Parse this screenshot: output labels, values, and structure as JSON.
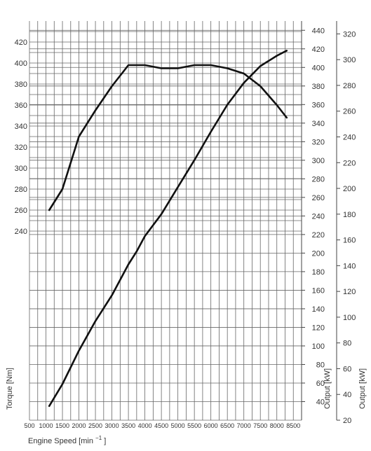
{
  "chart_data": {
    "type": "line",
    "grid": true,
    "x_axis": {
      "label_main": "Engine Speed [min",
      "label_sup": "−1",
      "label_close": "]",
      "range": [
        500,
        8750
      ],
      "ticks": [
        500,
        1000,
        1500,
        2000,
        2500,
        3000,
        3500,
        4000,
        4500,
        5000,
        5500,
        6000,
        6500,
        7000,
        7500,
        8000,
        8500
      ]
    },
    "left_axis": {
      "label": "Torque [Nm]",
      "range": [
        60,
        440
      ],
      "ticks": [
        240,
        260,
        280,
        300,
        320,
        340,
        360,
        380,
        400,
        420
      ]
    },
    "right_axis_hp": {
      "label": "Output [kW]",
      "range": [
        20,
        450
      ],
      "ticks": [
        40,
        60,
        80,
        100,
        120,
        140,
        160,
        180,
        200,
        220,
        240,
        260,
        280,
        300,
        320,
        340,
        360,
        380,
        400,
        420,
        440
      ]
    },
    "right_axis_kw": {
      "label": "Output [kW]",
      "range": [
        20,
        330
      ],
      "ticks": [
        20,
        40,
        60,
        80,
        100,
        120,
        140,
        160,
        180,
        200,
        220,
        240,
        260,
        280,
        300,
        320
      ]
    },
    "series": [
      {
        "axis": "left",
        "points": [
          [
            1100,
            260
          ],
          [
            1500,
            280
          ],
          [
            2000,
            330
          ],
          [
            2500,
            355
          ],
          [
            3000,
            378
          ],
          [
            3500,
            398
          ],
          [
            4000,
            398
          ],
          [
            4500,
            395
          ],
          [
            5000,
            395
          ],
          [
            5500,
            398
          ],
          [
            6000,
            398
          ],
          [
            6500,
            395
          ],
          [
            7000,
            390
          ],
          [
            7500,
            378
          ],
          [
            8000,
            360
          ],
          [
            8300,
            348
          ]
        ]
      },
      {
        "axis": "right_kw",
        "points": [
          [
            1100,
            31
          ],
          [
            1500,
            48
          ],
          [
            2000,
            74
          ],
          [
            2500,
            97
          ],
          [
            3000,
            117
          ],
          [
            3500,
            141
          ],
          [
            3750,
            151
          ],
          [
            4000,
            163
          ],
          [
            4500,
            180
          ],
          [
            5000,
            201
          ],
          [
            5500,
            222
          ],
          [
            6000,
            244
          ],
          [
            6500,
            265
          ],
          [
            7000,
            282
          ],
          [
            7500,
            295
          ],
          [
            8000,
            303
          ],
          [
            8300,
            307
          ]
        ]
      }
    ]
  }
}
